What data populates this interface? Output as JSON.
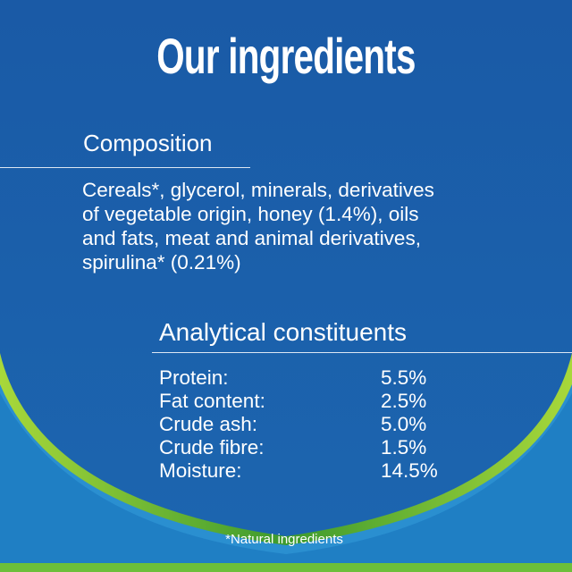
{
  "title": "Our ingredients",
  "composition": {
    "heading": "Composition",
    "lines": [
      "Cereals*, glycerol, minerals, derivatives",
      "of vegetable origin, honey (1.4%), oils",
      "and fats, meat and animal derivatives,",
      "spirulina* (0.21%)"
    ]
  },
  "analytical": {
    "heading": "Analytical constituents",
    "rows": [
      [
        "Protein:",
        "5.5%"
      ],
      [
        "Fat content:",
        "2.5%"
      ],
      [
        "Crude ash:",
        "5.0%"
      ],
      [
        "Crude fibre:",
        "1.5%"
      ],
      [
        "Moisture:",
        "14.5%"
      ]
    ]
  },
  "footnote": "*Natural ingredients"
}
